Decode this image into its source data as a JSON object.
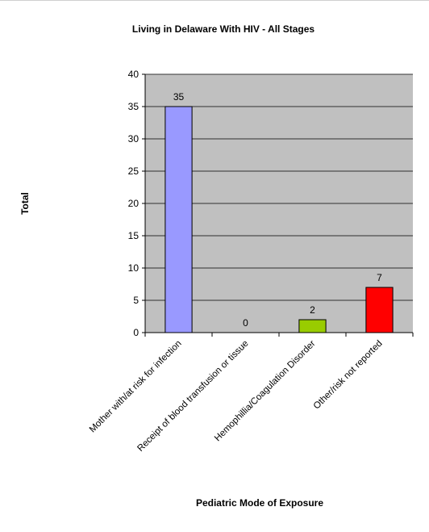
{
  "chart_data": {
    "type": "bar",
    "title": "Living in Delaware With HIV - All Stages",
    "xlabel": "Pediatric Mode of Exposure",
    "ylabel": "Total",
    "categories": [
      "Mother with/at risk for infection",
      "Receipt of blood transfusion or tissue",
      "Hemophillia/Coagulation Disorder",
      "Other/risk not reported"
    ],
    "values": [
      35,
      0,
      2,
      7
    ],
    "data_labels": [
      "35",
      "0",
      "2",
      "7"
    ],
    "bar_colors": [
      "#9999ff",
      "#9999ff",
      "#99cc00",
      "#ff0000"
    ],
    "plot_background": "#c0c0c0",
    "ylim": [
      0,
      40
    ],
    "yticks": [
      0,
      5,
      10,
      15,
      20,
      25,
      30,
      35,
      40
    ],
    "grid": true,
    "legend": "none"
  }
}
